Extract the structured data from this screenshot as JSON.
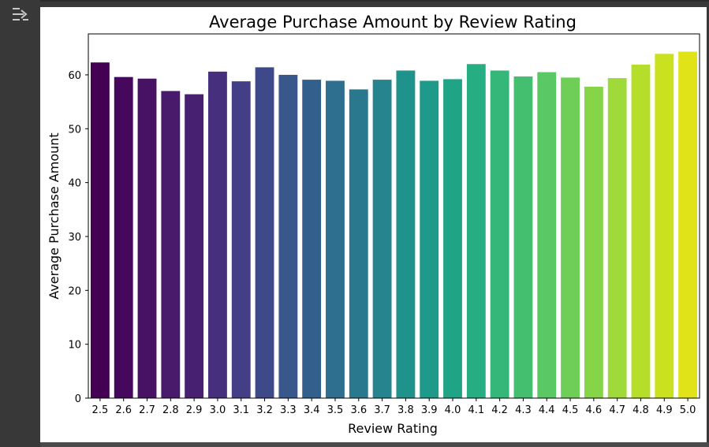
{
  "toolbar": {
    "output_icon": "output-settings-icon"
  },
  "chart_data": {
    "type": "bar",
    "title": "Average Purchase Amount by Review Rating",
    "xlabel": "Review Rating",
    "ylabel": "Average Purchase Amount",
    "ylim": [
      0,
      67.6
    ],
    "yticks": [
      0,
      10,
      20,
      30,
      40,
      50,
      60
    ],
    "grid": false,
    "palette": "viridis",
    "categories": [
      "2.5",
      "2.6",
      "2.7",
      "2.8",
      "2.9",
      "3.0",
      "3.1",
      "3.2",
      "3.3",
      "3.4",
      "3.5",
      "3.6",
      "3.7",
      "3.8",
      "3.9",
      "4.0",
      "4.1",
      "4.2",
      "4.3",
      "4.4",
      "4.5",
      "4.6",
      "4.7",
      "4.8",
      "4.9",
      "5.0"
    ],
    "values": [
      62.3,
      59.6,
      59.3,
      57.0,
      56.4,
      60.6,
      58.8,
      61.4,
      60.0,
      59.1,
      58.9,
      57.3,
      59.1,
      60.8,
      58.9,
      59.2,
      62.0,
      60.8,
      59.7,
      60.5,
      59.5,
      57.8,
      59.4,
      61.9,
      63.9,
      64.3
    ],
    "colors": [
      "#440154",
      "#46085c",
      "#471164",
      "#481a6c",
      "#482071",
      "#46307e",
      "#433e85",
      "#3e4989",
      "#38588c",
      "#335f8d",
      "#2e6e8e",
      "#2a788e",
      "#25848e",
      "#20928c",
      "#1f9a8a",
      "#20a486",
      "#26ad81",
      "#35b779",
      "#44bf70",
      "#5ac864",
      "#6ece58",
      "#86d549",
      "#9fda3a",
      "#b5de2b",
      "#cae11f",
      "#e0e318"
    ]
  }
}
